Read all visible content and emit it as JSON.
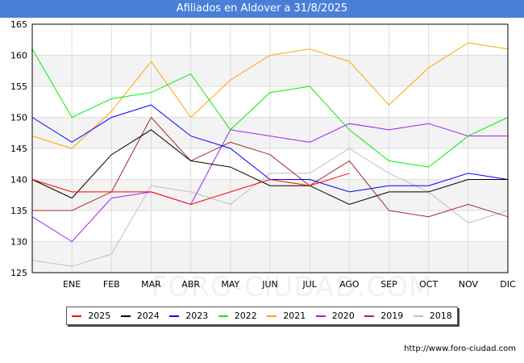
{
  "chart_data": {
    "type": "line",
    "title": "Afiliados en Aldover a 31/8/2025",
    "categories": [
      "",
      "ENE",
      "FEB",
      "MAR",
      "ABR",
      "MAY",
      "JUN",
      "JUL",
      "AGO",
      "SEP",
      "OCT",
      "NOV",
      "DIC"
    ],
    "ylim": [
      125,
      165
    ],
    "yticks": [
      125,
      130,
      135,
      140,
      145,
      150,
      155,
      160,
      165
    ],
    "xlabel": "",
    "ylabel": "",
    "grid": true,
    "legend_position": "bottom",
    "series": [
      {
        "name": "2025",
        "color": "#ff0000",
        "values": [
          140,
          138,
          138,
          138,
          136,
          138,
          140,
          139,
          141,
          null,
          null,
          null,
          null
        ]
      },
      {
        "name": "2024",
        "color": "#000000",
        "values": [
          140,
          137,
          144,
          148,
          143,
          142,
          139,
          139,
          136,
          138,
          138,
          140,
          140
        ]
      },
      {
        "name": "2023",
        "color": "#0000ff",
        "values": [
          150,
          146,
          150,
          152,
          147,
          145,
          140,
          140,
          138,
          139,
          139,
          141,
          140
        ]
      },
      {
        "name": "2022",
        "color": "#00ee00",
        "values": [
          161,
          150,
          153,
          154,
          157,
          148,
          154,
          155,
          148,
          143,
          142,
          147,
          150
        ]
      },
      {
        "name": "2021",
        "color": "#ffa500",
        "values": [
          147,
          145,
          151,
          159,
          150,
          156,
          160,
          161,
          159,
          152,
          158,
          162,
          161
        ]
      },
      {
        "name": "2020",
        "color": "#a020f0",
        "values": [
          134,
          130,
          137,
          138,
          136,
          148,
          147,
          146,
          149,
          148,
          149,
          147,
          147
        ]
      },
      {
        "name": "2019",
        "color": "#a52a2a",
        "values": [
          135,
          135,
          138,
          150,
          143,
          146,
          144,
          139,
          143,
          135,
          134,
          136,
          134
        ]
      },
      {
        "name": "2018",
        "color": "#c0c0c0",
        "values": [
          127,
          126,
          128,
          139,
          138,
          136,
          141,
          141,
          145,
          141,
          138,
          133,
          135
        ]
      }
    ]
  },
  "source": "http://www.foro-ciudad.com",
  "watermark": "FORO-CIUDAD.COM"
}
